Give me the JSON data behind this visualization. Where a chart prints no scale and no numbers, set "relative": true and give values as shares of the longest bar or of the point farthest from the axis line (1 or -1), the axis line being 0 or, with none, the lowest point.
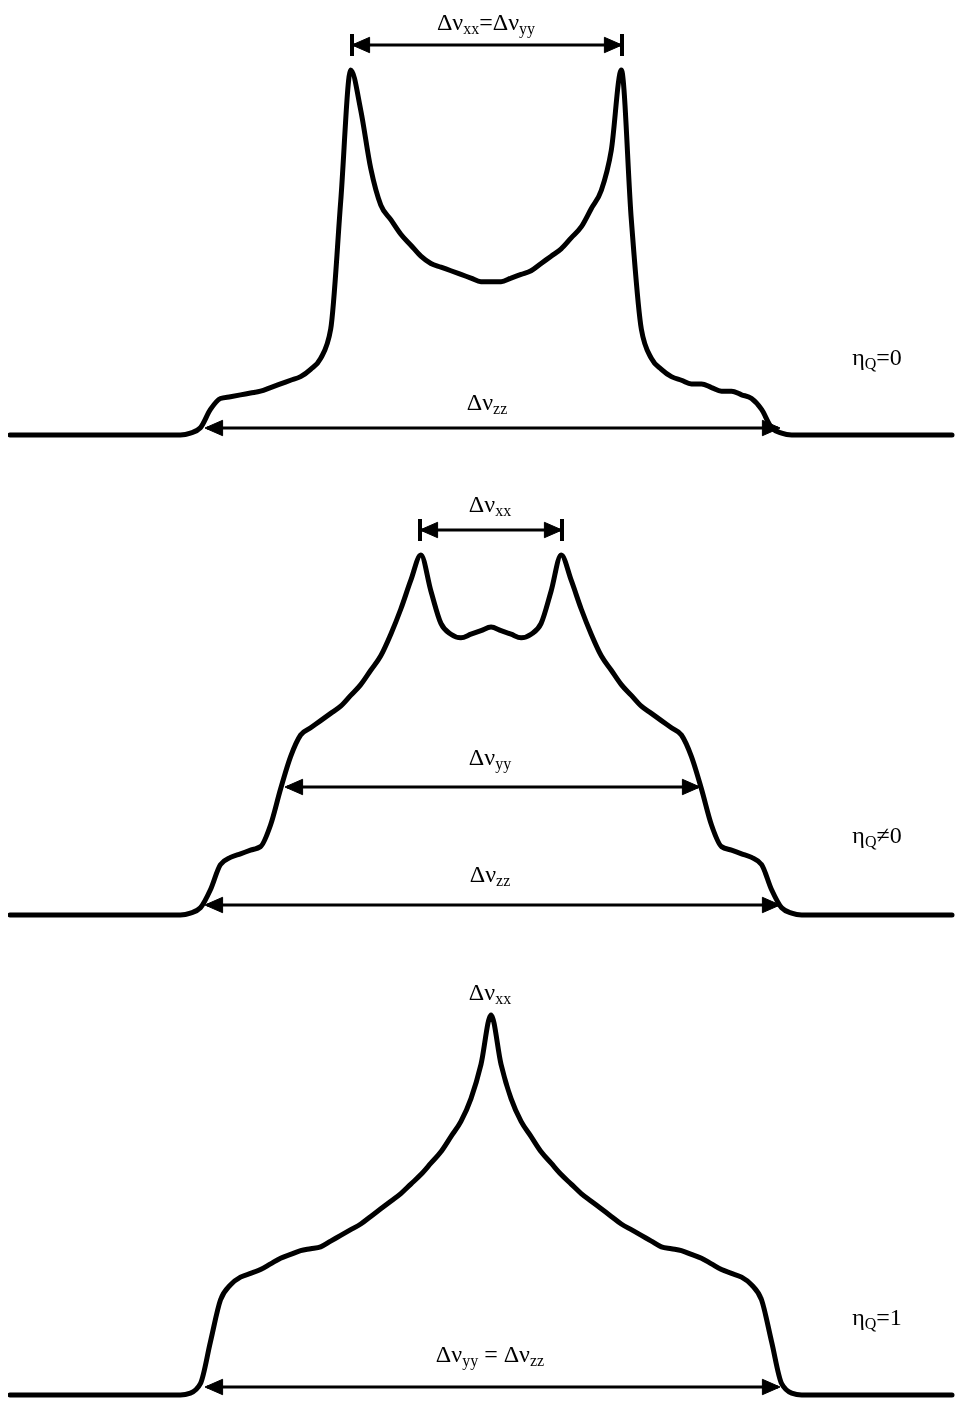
{
  "chart_data": [
    {
      "type": "line",
      "relative": true,
      "color": "#000000",
      "categories": [
        null,
        null,
        null,
        null,
        null,
        null,
        null,
        null,
        null,
        null,
        null,
        null,
        null,
        null,
        null,
        null,
        null,
        null,
        null,
        null,
        null,
        null,
        null,
        null,
        null,
        null,
        null,
        null,
        null,
        null,
        null,
        null,
        null,
        null,
        null,
        null,
        null,
        null,
        null,
        null,
        null,
        null,
        null,
        null,
        null,
        null,
        null,
        null,
        null,
        null,
        null,
        null,
        null,
        null,
        null,
        null,
        null,
        null,
        null,
        null,
        null,
        null,
        null,
        null,
        null,
        null,
        null,
        null,
        null,
        null,
        null,
        null,
        null,
        null,
        null,
        null,
        null,
        null,
        null,
        null,
        null,
        null,
        null,
        null,
        null,
        null,
        null,
        null,
        null,
        null,
        null,
        null,
        null,
        null,
        null
      ],
      "values": [
        0,
        0,
        0,
        0,
        0,
        0,
        0,
        0,
        0,
        0,
        0,
        0,
        0,
        0,
        0,
        0,
        0,
        0,
        0.005,
        0.02,
        0.07,
        0.1,
        0.105,
        0.11,
        0.115,
        0.12,
        0.13,
        0.14,
        0.15,
        0.16,
        0.18,
        0.21,
        0.29,
        0.64,
        1,
        0.89,
        0.73,
        0.63,
        0.59,
        0.55,
        0.52,
        0.49,
        0.47,
        0.46,
        0.45,
        0.44,
        0.43,
        0.42,
        0.42,
        0.42,
        0.43,
        0.44,
        0.45,
        0.47,
        0.49,
        0.51,
        0.54,
        0.57,
        0.62,
        0.67,
        0.78,
        1,
        0.59,
        0.29,
        0.21,
        0.18,
        0.16,
        0.15,
        0.14,
        0.14,
        0.13,
        0.12,
        0.12,
        0.11,
        0.1,
        0.07,
        0.02,
        0.005,
        0,
        0,
        0,
        0,
        0,
        0,
        0,
        0,
        0,
        0,
        0,
        0,
        0,
        0,
        0,
        0,
        0
      ],
      "annotations": [
        "Δν$_{xx}$=Δν$_{yy}$",
        "Δν$_{zz}$",
        "η$_{Q}$=0"
      ]
    },
    {
      "type": "line",
      "relative": true,
      "color": "#000000",
      "categories": [
        null,
        null,
        null,
        null,
        null,
        null,
        null,
        null,
        null,
        null,
        null,
        null,
        null,
        null,
        null,
        null,
        null,
        null,
        null,
        null,
        null,
        null,
        null,
        null,
        null,
        null,
        null,
        null,
        null,
        null,
        null,
        null,
        null,
        null,
        null,
        null,
        null,
        null,
        null,
        null,
        null,
        null,
        null,
        null,
        null,
        null,
        null,
        null,
        null,
        null,
        null,
        null,
        null,
        null,
        null,
        null,
        null,
        null,
        null,
        null,
        null,
        null,
        null,
        null,
        null,
        null,
        null,
        null,
        null,
        null,
        null,
        null,
        null,
        null,
        null,
        null,
        null,
        null,
        null,
        null,
        null,
        null,
        null,
        null,
        null,
        null,
        null,
        null,
        null,
        null,
        null,
        null,
        null,
        null,
        null
      ],
      "values": [
        0,
        0,
        0,
        0,
        0,
        0,
        0,
        0,
        0,
        0,
        0,
        0,
        0,
        0,
        0,
        0,
        0,
        0,
        0.005,
        0.02,
        0.07,
        0.14,
        0.16,
        0.17,
        0.18,
        0.19,
        0.25,
        0.35,
        0.44,
        0.5,
        0.52,
        0.54,
        0.56,
        0.58,
        0.61,
        0.64,
        0.68,
        0.72,
        0.78,
        0.85,
        0.93,
        1,
        0.9,
        0.81,
        0.78,
        0.77,
        0.78,
        0.79,
        0.8,
        0.79,
        0.78,
        0.77,
        0.78,
        0.81,
        0.9,
        1,
        0.93,
        0.85,
        0.78,
        0.72,
        0.68,
        0.64,
        0.61,
        0.58,
        0.56,
        0.54,
        0.52,
        0.5,
        0.44,
        0.35,
        0.25,
        0.19,
        0.18,
        0.17,
        0.16,
        0.14,
        0.07,
        0.02,
        0.005,
        0,
        0,
        0,
        0,
        0,
        0,
        0,
        0,
        0,
        0,
        0,
        0,
        0,
        0,
        0,
        0
      ],
      "annotations": [
        "Δν$_{xx}$",
        "Δν$_{yy}$",
        "Δν$_{zz}$",
        "η$_{Q}$≠0"
      ]
    },
    {
      "type": "line",
      "relative": true,
      "color": "#000000",
      "categories": [
        null,
        null,
        null,
        null,
        null,
        null,
        null,
        null,
        null,
        null,
        null,
        null,
        null,
        null,
        null,
        null,
        null,
        null,
        null,
        null,
        null,
        null,
        null,
        null,
        null,
        null,
        null,
        null,
        null,
        null,
        null,
        null,
        null,
        null,
        null,
        null,
        null,
        null,
        null,
        null,
        null,
        null,
        null,
        null,
        null,
        null,
        null,
        null,
        null,
        null,
        null,
        null,
        null,
        null,
        null,
        null,
        null,
        null,
        null,
        null,
        null,
        null,
        null,
        null,
        null,
        null,
        null,
        null,
        null,
        null,
        null,
        null,
        null,
        null,
        null,
        null,
        null,
        null,
        null,
        null,
        null,
        null,
        null,
        null,
        null,
        null,
        null,
        null,
        null,
        null,
        null,
        null,
        null,
        null,
        null
      ],
      "values": [
        0,
        0,
        0,
        0,
        0,
        0,
        0,
        0,
        0,
        0,
        0,
        0,
        0,
        0,
        0,
        0,
        0,
        0,
        0.005,
        0.03,
        0.14,
        0.25,
        0.29,
        0.31,
        0.32,
        0.33,
        0.345,
        0.36,
        0.37,
        0.38,
        0.385,
        0.39,
        0.405,
        0.42,
        0.435,
        0.45,
        0.47,
        0.49,
        0.51,
        0.53,
        0.555,
        0.58,
        0.61,
        0.64,
        0.68,
        0.72,
        0.78,
        0.87,
        1,
        0.87,
        0.78,
        0.72,
        0.68,
        0.64,
        0.61,
        0.58,
        0.555,
        0.53,
        0.51,
        0.49,
        0.47,
        0.45,
        0.435,
        0.42,
        0.405,
        0.39,
        0.385,
        0.38,
        0.37,
        0.36,
        0.345,
        0.33,
        0.32,
        0.31,
        0.29,
        0.25,
        0.14,
        0.03,
        0.005,
        0,
        0,
        0,
        0,
        0,
        0,
        0,
        0,
        0,
        0,
        0,
        0,
        0,
        0,
        0,
        0
      ],
      "annotations": [
        "Δν$_{xx}$",
        "Δν$_{yy}$ = Δν$_{zz}$",
        "η$_{Q}$=1"
      ]
    }
  ]
}
